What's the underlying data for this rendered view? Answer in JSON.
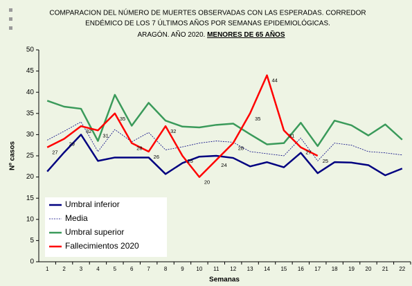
{
  "chart_data": {
    "type": "line",
    "title_lines": [
      "COMPARACION DEL NÚMERO  DE MUERTES OBSERVADAS CON LAS ESPERADAS. CORREDOR",
      "ENDÉMICO DE LOS 7 ÚLTIMOS AÑOS POR SEMANAS EPIDEMIOLÓGICAS.",
      "ARAGÓN. AÑO 2020."
    ],
    "title_emphasis": "MENORES DE 65 AÑOS",
    "x_label": "Semanas",
    "y_label": "Nº casos",
    "categories": [
      "1",
      "2",
      "3",
      "4",
      "5",
      "6",
      "7",
      "8",
      "9",
      "10",
      "11",
      "12",
      "13",
      "14",
      "15",
      "16",
      "17",
      "18",
      "19",
      "20",
      "21",
      "22"
    ],
    "ylim": [
      0,
      50
    ],
    "yticks": [
      0,
      5,
      10,
      15,
      20,
      25,
      30,
      35,
      40,
      45,
      50
    ],
    "legend": "lower left",
    "series": [
      {
        "name": "Umbral inferior",
        "color": "#000080",
        "style": "solid",
        "values": [
          21.3,
          25.8,
          30,
          23.8,
          24.6,
          24.6,
          24.6,
          20.7,
          23.3,
          24.8,
          25,
          24.5,
          22.5,
          23.5,
          22.3,
          25.7,
          20.9,
          23.5,
          23.4,
          22.8,
          20.4,
          22
        ]
      },
      {
        "name": "Media",
        "color": "#000080",
        "style": "dashed",
        "values": [
          28.7,
          30.8,
          33,
          26,
          31.2,
          28.3,
          30.5,
          26.4,
          27.1,
          28,
          28.5,
          28.2,
          26,
          25.5,
          25,
          29.2,
          23.8,
          28,
          27.5,
          26,
          25.7,
          25.2
        ]
      },
      {
        "name": "Umbral superior",
        "color": "#3a9a5a",
        "style": "solid",
        "values": [
          38,
          36.6,
          36.1,
          28.5,
          39.4,
          32.1,
          37.5,
          33.3,
          31.9,
          31.7,
          32.3,
          32.6,
          30.1,
          27.7,
          28,
          32.8,
          27.3,
          33.3,
          32.2,
          29.8,
          32.4,
          28.8
        ]
      },
      {
        "name": "Fallecimientos 2020",
        "color": "#ff0000",
        "style": "solid",
        "data_labels": true,
        "values": [
          27,
          29,
          32,
          31,
          35,
          28,
          26,
          32,
          25,
          20,
          24,
          28,
          35,
          44,
          31,
          27,
          25,
          null,
          null,
          null,
          null,
          null
        ]
      }
    ]
  }
}
